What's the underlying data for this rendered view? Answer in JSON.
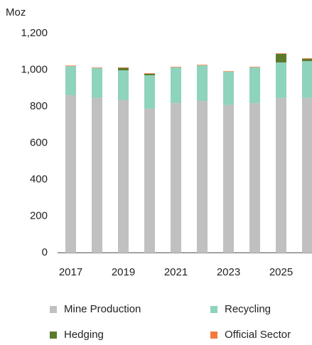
{
  "chart_data": {
    "type": "stacked_bar",
    "y_label": "Moz",
    "categories": [
      "2017",
      null,
      "2019",
      null,
      "2021",
      null,
      "2023",
      null,
      "2025",
      null
    ],
    "series": [
      {
        "name": "Mine Production",
        "color": "#c0c0c0",
        "values": [
          862,
          847,
          835,
          788,
          819,
          831,
          808,
          819,
          847,
          847
        ]
      },
      {
        "name": "Recycling",
        "color": "#8ed3bb",
        "values": [
          159,
          163,
          163,
          183,
          195,
          194,
          182,
          195,
          194,
          201
        ]
      },
      {
        "name": "Hedging",
        "color": "#5a7a2e",
        "values": [
          0,
          0,
          13,
          8,
          0,
          0,
          0,
          0,
          47,
          13
        ]
      },
      {
        "name": "Official Sector",
        "color": "#f47a3c",
        "values": [
          3,
          3,
          3,
          3,
          3,
          3,
          3,
          3,
          3,
          3
        ]
      }
    ],
    "ylim": [
      0,
      1200
    ],
    "yticks": [
      0,
      200,
      400,
      600,
      800,
      {
        "value": 1000,
        "label": "1,000"
      },
      {
        "value": 1200,
        "label": "1,200"
      }
    ],
    "legend": "bottom"
  }
}
